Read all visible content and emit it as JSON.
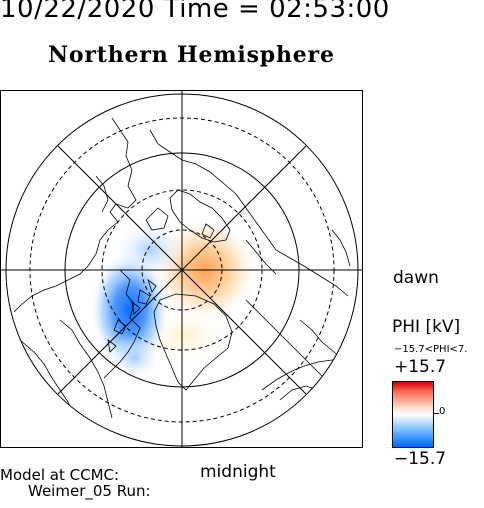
{
  "header": {
    "timestamp": "10/22/2020 Time = 02:53:00",
    "hemisphere": "Northern Hemisphere"
  },
  "map": {
    "orientation_top": "noon",
    "dawn_label": "dawn",
    "midnight_label": "midnight"
  },
  "footer": {
    "model_label": "Model at CCMC:",
    "run_label": "Weimer_05 Run:"
  },
  "colorbar": {
    "title": "PHI [kV]",
    "range_text": "−15.7<PHI<7.",
    "max_label": "+15.7",
    "zero_label": "0",
    "min_label": "−15.7",
    "colors": {
      "max": "#cc0000",
      "mid": "#ffffff",
      "min": "#0066ff"
    }
  }
}
